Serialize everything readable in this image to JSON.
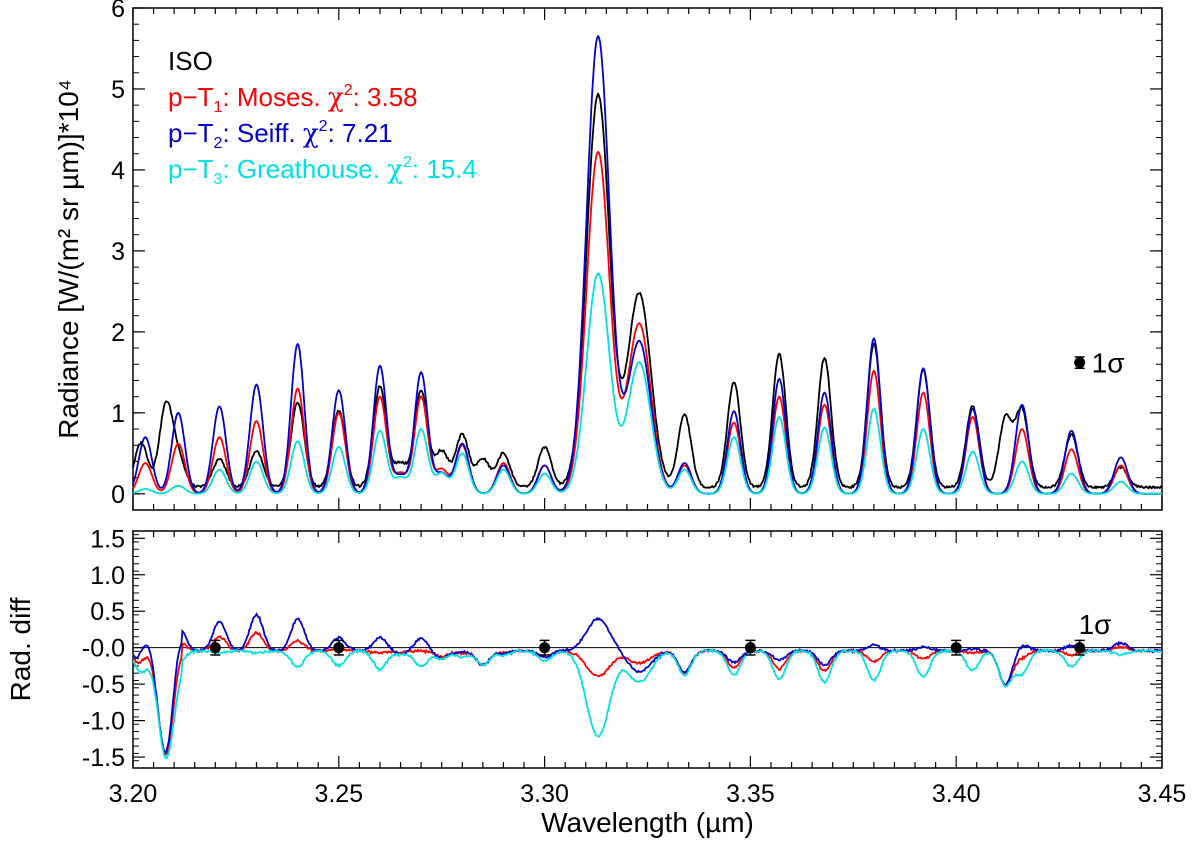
{
  "chart_data": [
    {
      "type": "line",
      "panel": "top",
      "title": "",
      "xlabel": "",
      "ylabel": "Radiance [W/(m² sr µm)]*10⁴",
      "xlim": [
        3.2,
        3.45
      ],
      "ylim": [
        -0.2,
        6.0
      ],
      "yticks": [
        0,
        1,
        2,
        3,
        4,
        5,
        6
      ],
      "xticks": [
        3.2,
        3.25,
        3.3,
        3.35,
        3.4,
        3.45
      ],
      "legend": {
        "placement": "top-left",
        "entries": [
          {
            "text": "ISO",
            "color": "#000000"
          },
          {
            "prefix": "p−T",
            "sub": "1",
            "model": ": Moses.",
            "chi_label": "χ",
            "chi_sup": "2",
            "chi_value": ": 3.58",
            "color": "#ff0000"
          },
          {
            "prefix": "p−T",
            "sub": "2",
            "model": ": Seiff.",
            "chi_label": "χ",
            "chi_sup": "2",
            "chi_value": ": 7.21",
            "color": "#0000cc"
          },
          {
            "prefix": "p−T",
            "sub": "3",
            "model": ": Greathouse.",
            "chi_label": "χ",
            "chi_sup": "2",
            "chi_value": ": 15.4",
            "color": "#00e0e0"
          }
        ]
      },
      "sigma_marker": {
        "x": 3.43,
        "y": 1.62,
        "err": 0.07,
        "label": "1σ"
      },
      "series": [
        {
          "name": "ISO",
          "color": "#000000",
          "base": 0.08,
          "peaks": [
            [
              3.202,
              0.55
            ],
            [
              3.208,
              1.0
            ],
            [
              3.211,
              0.35
            ],
            [
              3.221,
              0.35
            ],
            [
              3.23,
              0.45
            ],
            [
              3.24,
              1.05
            ],
            [
              3.25,
              0.95
            ],
            [
              3.26,
              1.25
            ],
            [
              3.265,
              0.3
            ],
            [
              3.27,
              1.2
            ],
            [
              3.275,
              0.45
            ],
            [
              3.28,
              0.65
            ],
            [
              3.285,
              0.35
            ],
            [
              3.29,
              0.42
            ],
            [
              3.3,
              0.5
            ],
            [
              3.313,
              4.85
            ],
            [
              3.323,
              2.4
            ],
            [
              3.334,
              0.9
            ],
            [
              3.346,
              1.3
            ],
            [
              3.357,
              1.65
            ],
            [
              3.368,
              1.6
            ],
            [
              3.38,
              1.78
            ],
            [
              3.392,
              1.45
            ],
            [
              3.404,
              1.0
            ],
            [
              3.412,
              0.85
            ],
            [
              3.416,
              0.95
            ],
            [
              3.428,
              0.65
            ],
            [
              3.44,
              0.25
            ]
          ]
        },
        {
          "name": "p-T1 Moses",
          "color": "#ff0000",
          "base": 0.0,
          "peaks": [
            [
              3.203,
              0.38
            ],
            [
              3.211,
              0.62
            ],
            [
              3.221,
              0.7
            ],
            [
              3.23,
              0.9
            ],
            [
              3.24,
              1.3
            ],
            [
              3.25,
              1.0
            ],
            [
              3.26,
              1.2
            ],
            [
              3.265,
              0.25
            ],
            [
              3.27,
              1.2
            ],
            [
              3.275,
              0.3
            ],
            [
              3.28,
              0.6
            ],
            [
              3.29,
              0.38
            ],
            [
              3.3,
              0.35
            ],
            [
              3.313,
              4.22
            ],
            [
              3.323,
              2.1
            ],
            [
              3.334,
              0.35
            ],
            [
              3.346,
              0.88
            ],
            [
              3.357,
              1.2
            ],
            [
              3.368,
              1.1
            ],
            [
              3.38,
              1.52
            ],
            [
              3.392,
              1.25
            ],
            [
              3.404,
              0.95
            ],
            [
              3.416,
              0.8
            ],
            [
              3.428,
              0.55
            ],
            [
              3.44,
              0.35
            ]
          ]
        },
        {
          "name": "p-T2 Seiff",
          "color": "#0000cc",
          "base": 0.0,
          "peaks": [
            [
              3.203,
              0.7
            ],
            [
              3.211,
              1.0
            ],
            [
              3.221,
              1.08
            ],
            [
              3.23,
              1.35
            ],
            [
              3.24,
              1.85
            ],
            [
              3.25,
              1.28
            ],
            [
              3.26,
              1.58
            ],
            [
              3.265,
              0.22
            ],
            [
              3.27,
              1.5
            ],
            [
              3.275,
              0.25
            ],
            [
              3.28,
              0.62
            ],
            [
              3.29,
              0.35
            ],
            [
              3.3,
              0.35
            ],
            [
              3.313,
              5.65
            ],
            [
              3.323,
              1.88
            ],
            [
              3.334,
              0.38
            ],
            [
              3.346,
              1.02
            ],
            [
              3.357,
              1.42
            ],
            [
              3.368,
              1.25
            ],
            [
              3.38,
              1.92
            ],
            [
              3.392,
              1.55
            ],
            [
              3.404,
              1.05
            ],
            [
              3.416,
              1.1
            ],
            [
              3.428,
              0.78
            ],
            [
              3.44,
              0.45
            ]
          ]
        },
        {
          "name": "p-T3 Greathouse",
          "color": "#00e0e0",
          "base": 0.0,
          "peaks": [
            [
              3.203,
              0.06
            ],
            [
              3.211,
              0.1
            ],
            [
              3.221,
              0.3
            ],
            [
              3.23,
              0.4
            ],
            [
              3.24,
              0.65
            ],
            [
              3.25,
              0.58
            ],
            [
              3.26,
              0.78
            ],
            [
              3.265,
              0.2
            ],
            [
              3.27,
              0.8
            ],
            [
              3.275,
              0.25
            ],
            [
              3.28,
              0.5
            ],
            [
              3.29,
              0.3
            ],
            [
              3.3,
              0.25
            ],
            [
              3.313,
              2.72
            ],
            [
              3.323,
              1.62
            ],
            [
              3.334,
              0.3
            ],
            [
              3.346,
              0.7
            ],
            [
              3.357,
              0.95
            ],
            [
              3.368,
              0.82
            ],
            [
              3.38,
              1.05
            ],
            [
              3.392,
              0.8
            ],
            [
              3.404,
              0.52
            ],
            [
              3.416,
              0.4
            ],
            [
              3.428,
              0.25
            ],
            [
              3.44,
              0.15
            ]
          ]
        }
      ]
    },
    {
      "type": "line",
      "panel": "bottom",
      "title": "",
      "xlabel": "Wavelength (µm)",
      "ylabel": "Rad. diff",
      "xlim": [
        3.2,
        3.45
      ],
      "ylim": [
        -1.65,
        1.6
      ],
      "yticks": [
        1.5,
        1.0,
        0.5,
        0.0,
        -0.5,
        -1.0,
        -1.5
      ],
      "ytick_labels": [
        "1.5",
        "1.0",
        "0.5",
        "-0.0",
        "-0.5",
        "-1.0",
        "-1.5"
      ],
      "xticks": [
        3.2,
        3.25,
        3.3,
        3.35,
        3.4,
        3.45
      ],
      "xtick_labels": [
        "3.20",
        "3.25",
        "3.30",
        "3.35",
        "3.40",
        "3.45"
      ],
      "zero_line": 0.0,
      "sigma_label": {
        "x": 3.438,
        "y": 0.3,
        "text": "1σ"
      },
      "error_points": [
        {
          "x": 3.22,
          "y": 0.0,
          "err": 0.1
        },
        {
          "x": 3.25,
          "y": 0.0,
          "err": 0.1
        },
        {
          "x": 3.3,
          "y": 0.0,
          "err": 0.1
        },
        {
          "x": 3.35,
          "y": 0.0,
          "err": 0.1
        },
        {
          "x": 3.4,
          "y": 0.0,
          "err": 0.1
        },
        {
          "x": 3.43,
          "y": 0.0,
          "err": 0.1
        }
      ],
      "series": [
        {
          "name": "p-T1 Moses diff",
          "color": "#ff0000"
        },
        {
          "name": "p-T2 Seiff diff",
          "color": "#0000cc"
        },
        {
          "name": "p-T3 Greathouse diff",
          "color": "#00e0e0"
        }
      ]
    }
  ]
}
